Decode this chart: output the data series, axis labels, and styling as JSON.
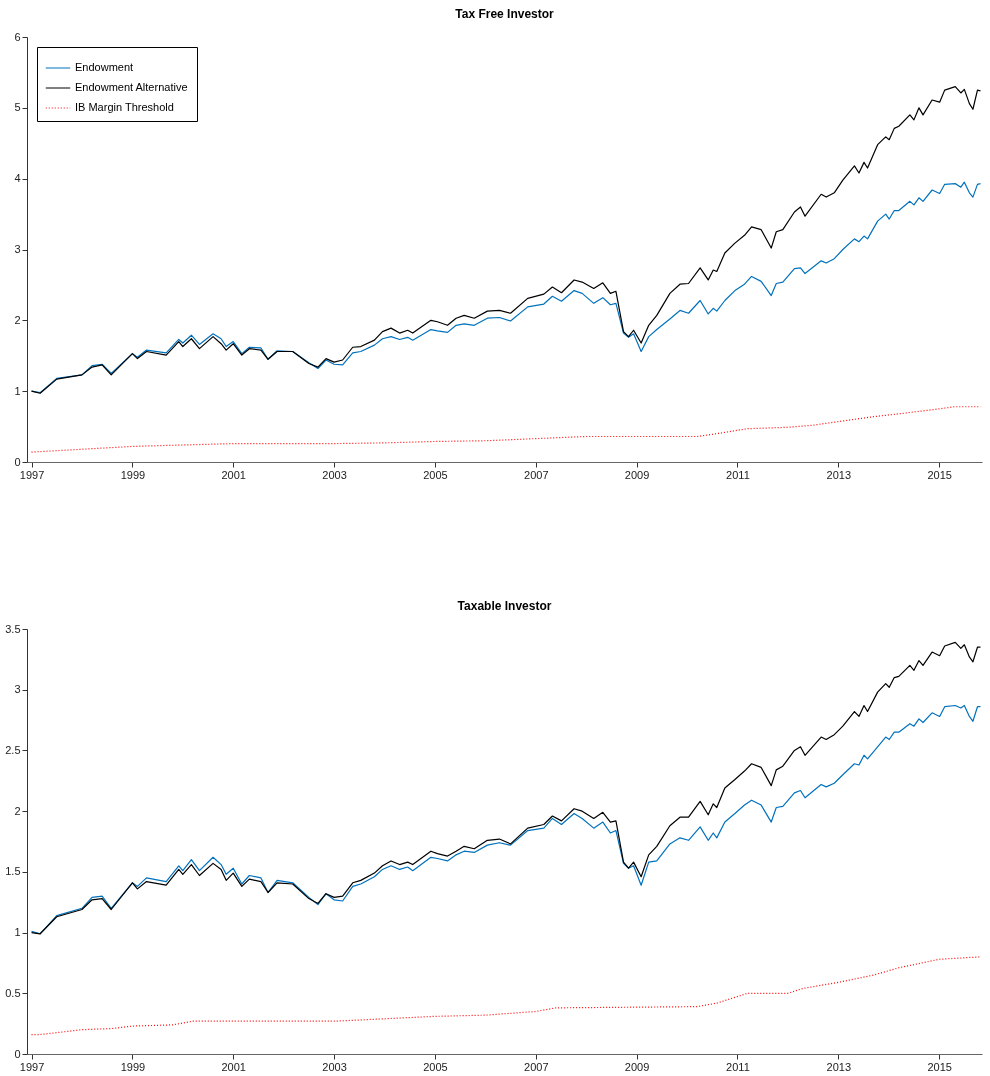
{
  "chart_data": [
    {
      "type": "line",
      "title": "Tax Free Investor",
      "legend": "top left",
      "x": [
        1997.0,
        1997.17,
        1997.5,
        1998.0,
        1998.2,
        1998.4,
        1998.58,
        1999.0,
        1999.1,
        1999.28,
        1999.67,
        1999.92,
        2000.0,
        2000.17,
        2000.33,
        2000.6,
        2000.76,
        2000.86,
        2001.0,
        2001.17,
        2001.32,
        2001.55,
        2001.69,
        2001.87,
        2002.18,
        2002.5,
        2002.68,
        2002.84,
        2003.0,
        2003.17,
        2003.37,
        2003.53,
        2003.8,
        2003.96,
        2004.13,
        2004.3,
        2004.46,
        2004.56,
        2004.92,
        2005.05,
        2005.25,
        2005.42,
        2005.58,
        2005.78,
        2006.04,
        2006.28,
        2006.5,
        2006.84,
        2007.16,
        2007.33,
        2007.51,
        2007.76,
        2007.92,
        2008.15,
        2008.33,
        2008.48,
        2008.59,
        2008.74,
        2008.84,
        2008.94,
        2009.09,
        2009.24,
        2009.4,
        2009.66,
        2009.86,
        2010.03,
        2010.26,
        2010.42,
        2010.52,
        2010.59,
        2010.75,
        2010.95,
        2011.14,
        2011.28,
        2011.47,
        2011.67,
        2011.77,
        2011.9,
        2012.13,
        2012.25,
        2012.34,
        2012.66,
        2012.76,
        2012.92,
        2013.09,
        2013.32,
        2013.41,
        2013.51,
        2013.58,
        2013.78,
        2013.94,
        2014.01,
        2014.11,
        2014.2,
        2014.42,
        2014.5,
        2014.6,
        2014.68,
        2014.86,
        2015.01,
        2015.11,
        2015.32,
        2015.43,
        2015.5,
        2015.6,
        2015.67,
        2015.76,
        2015.82
      ],
      "series": [
        {
          "name": "Endowment",
          "color": "#0072bd",
          "values": [
            1.0,
            0.98,
            1.18,
            1.23,
            1.36,
            1.38,
            1.25,
            1.53,
            1.48,
            1.58,
            1.54,
            1.73,
            1.68,
            1.79,
            1.66,
            1.81,
            1.74,
            1.63,
            1.7,
            1.53,
            1.62,
            1.61,
            1.45,
            1.57,
            1.56,
            1.4,
            1.32,
            1.44,
            1.38,
            1.37,
            1.54,
            1.56,
            1.65,
            1.74,
            1.77,
            1.73,
            1.76,
            1.72,
            1.87,
            1.85,
            1.83,
            1.93,
            1.95,
            1.93,
            2.03,
            2.04,
            1.99,
            2.19,
            2.23,
            2.34,
            2.27,
            2.42,
            2.38,
            2.24,
            2.32,
            2.22,
            2.24,
            1.82,
            1.76,
            1.81,
            1.56,
            1.77,
            1.87,
            2.02,
            2.14,
            2.1,
            2.28,
            2.09,
            2.17,
            2.13,
            2.28,
            2.42,
            2.51,
            2.62,
            2.55,
            2.35,
            2.52,
            2.54,
            2.73,
            2.74,
            2.66,
            2.84,
            2.81,
            2.87,
            3.0,
            3.15,
            3.11,
            3.19,
            3.15,
            3.4,
            3.5,
            3.43,
            3.55,
            3.55,
            3.68,
            3.63,
            3.73,
            3.68,
            3.84,
            3.79,
            3.92,
            3.93,
            3.88,
            3.95,
            3.8,
            3.74,
            3.92,
            3.93
          ]
        },
        {
          "name": "Endowment Alternative",
          "color": "#000000",
          "values": [
            1.0,
            0.97,
            1.17,
            1.23,
            1.34,
            1.37,
            1.23,
            1.53,
            1.46,
            1.56,
            1.51,
            1.7,
            1.63,
            1.74,
            1.6,
            1.77,
            1.67,
            1.58,
            1.67,
            1.51,
            1.6,
            1.58,
            1.45,
            1.56,
            1.56,
            1.39,
            1.34,
            1.46,
            1.41,
            1.44,
            1.62,
            1.63,
            1.72,
            1.84,
            1.89,
            1.82,
            1.86,
            1.82,
            2.0,
            1.98,
            1.93,
            2.03,
            2.07,
            2.03,
            2.13,
            2.14,
            2.1,
            2.31,
            2.37,
            2.47,
            2.39,
            2.57,
            2.54,
            2.45,
            2.53,
            2.38,
            2.41,
            1.84,
            1.77,
            1.86,
            1.68,
            1.93,
            2.07,
            2.38,
            2.51,
            2.52,
            2.74,
            2.57,
            2.71,
            2.69,
            2.95,
            3.09,
            3.2,
            3.32,
            3.28,
            3.02,
            3.25,
            3.28,
            3.53,
            3.6,
            3.47,
            3.78,
            3.74,
            3.8,
            3.98,
            4.18,
            4.08,
            4.23,
            4.15,
            4.48,
            4.59,
            4.55,
            4.71,
            4.74,
            4.9,
            4.83,
            5.0,
            4.9,
            5.11,
            5.08,
            5.25,
            5.3,
            5.21,
            5.26,
            5.06,
            4.98,
            5.25,
            5.24
          ]
        },
        {
          "name": "IB Margin Threshold",
          "color": "#ff0000",
          "line_style": "dotted",
          "x": [
            1997,
            1998,
            1999,
            2000,
            2001,
            2003,
            2004,
            2005,
            2006,
            2007,
            2008,
            2010.2,
            2010.5,
            2011.2,
            2012,
            2012.5,
            2013,
            2013.7,
            2014.2,
            2015,
            2015.3,
            2015.82
          ],
          "values": [
            0.14,
            0.18,
            0.22,
            0.24,
            0.26,
            0.26,
            0.27,
            0.29,
            0.3,
            0.33,
            0.36,
            0.36,
            0.39,
            0.47,
            0.49,
            0.52,
            0.57,
            0.64,
            0.68,
            0.75,
            0.78,
            0.78
          ]
        }
      ],
      "xlim": [
        1996.91,
        2015.85
      ],
      "xticks": [
        1997,
        1999,
        2001,
        2003,
        2005,
        2007,
        2009,
        2011,
        2013,
        2015
      ],
      "ylim": [
        0,
        6
      ],
      "yticks": [
        0,
        1,
        2,
        3,
        4,
        5,
        6
      ]
    },
    {
      "type": "line",
      "title": "Taxable Investor",
      "legend": "top left",
      "x": [
        1997.0,
        1997.17,
        1997.5,
        1998.0,
        1998.2,
        1998.4,
        1998.58,
        1999.0,
        1999.1,
        1999.28,
        1999.67,
        1999.92,
        2000.0,
        2000.17,
        2000.33,
        2000.6,
        2000.76,
        2000.86,
        2001.0,
        2001.17,
        2001.32,
        2001.55,
        2001.69,
        2001.87,
        2002.18,
        2002.5,
        2002.68,
        2002.84,
        2003.0,
        2003.17,
        2003.37,
        2003.53,
        2003.8,
        2003.96,
        2004.13,
        2004.3,
        2004.46,
        2004.56,
        2004.92,
        2005.05,
        2005.25,
        2005.42,
        2005.58,
        2005.78,
        2006.04,
        2006.28,
        2006.5,
        2006.84,
        2007.16,
        2007.33,
        2007.51,
        2007.76,
        2007.92,
        2008.15,
        2008.33,
        2008.48,
        2008.59,
        2008.74,
        2008.84,
        2008.94,
        2009.09,
        2009.24,
        2009.4,
        2009.66,
        2009.86,
        2010.03,
        2010.26,
        2010.42,
        2010.52,
        2010.59,
        2010.75,
        2010.95,
        2011.14,
        2011.28,
        2011.47,
        2011.67,
        2011.77,
        2011.9,
        2012.13,
        2012.25,
        2012.34,
        2012.66,
        2012.76,
        2012.92,
        2013.09,
        2013.32,
        2013.41,
        2013.51,
        2013.58,
        2013.78,
        2013.94,
        2014.01,
        2014.11,
        2014.2,
        2014.42,
        2014.5,
        2014.6,
        2014.68,
        2014.86,
        2015.01,
        2015.11,
        2015.32,
        2015.43,
        2015.5,
        2015.6,
        2015.67,
        2015.76,
        2015.82
      ],
      "series": [
        {
          "name": "Endowment",
          "color": "#0072bd",
          "values": [
            1.01,
            0.99,
            1.14,
            1.2,
            1.29,
            1.3,
            1.2,
            1.41,
            1.38,
            1.45,
            1.42,
            1.55,
            1.51,
            1.6,
            1.51,
            1.62,
            1.56,
            1.48,
            1.53,
            1.4,
            1.47,
            1.45,
            1.33,
            1.43,
            1.41,
            1.29,
            1.23,
            1.32,
            1.27,
            1.26,
            1.38,
            1.4,
            1.46,
            1.52,
            1.55,
            1.52,
            1.54,
            1.51,
            1.62,
            1.61,
            1.59,
            1.64,
            1.67,
            1.66,
            1.72,
            1.74,
            1.72,
            1.84,
            1.86,
            1.94,
            1.89,
            1.98,
            1.94,
            1.86,
            1.91,
            1.82,
            1.84,
            1.57,
            1.53,
            1.55,
            1.39,
            1.58,
            1.59,
            1.73,
            1.78,
            1.76,
            1.87,
            1.76,
            1.82,
            1.78,
            1.91,
            1.98,
            2.05,
            2.09,
            2.05,
            1.91,
            2.03,
            2.04,
            2.15,
            2.17,
            2.11,
            2.22,
            2.2,
            2.23,
            2.3,
            2.39,
            2.38,
            2.46,
            2.43,
            2.53,
            2.61,
            2.59,
            2.65,
            2.65,
            2.72,
            2.7,
            2.76,
            2.73,
            2.81,
            2.78,
            2.86,
            2.87,
            2.85,
            2.87,
            2.78,
            2.74,
            2.86,
            2.86
          ]
        },
        {
          "name": "Endowment Alternative",
          "color": "#000000",
          "values": [
            1.0,
            0.99,
            1.13,
            1.19,
            1.27,
            1.28,
            1.19,
            1.41,
            1.36,
            1.42,
            1.39,
            1.52,
            1.48,
            1.56,
            1.47,
            1.57,
            1.52,
            1.43,
            1.49,
            1.38,
            1.44,
            1.42,
            1.33,
            1.41,
            1.4,
            1.28,
            1.24,
            1.32,
            1.29,
            1.3,
            1.41,
            1.43,
            1.49,
            1.55,
            1.59,
            1.56,
            1.58,
            1.56,
            1.67,
            1.65,
            1.63,
            1.67,
            1.71,
            1.69,
            1.76,
            1.77,
            1.73,
            1.86,
            1.89,
            1.96,
            1.92,
            2.02,
            2.0,
            1.94,
            1.99,
            1.91,
            1.92,
            1.58,
            1.53,
            1.58,
            1.46,
            1.64,
            1.71,
            1.88,
            1.95,
            1.95,
            2.08,
            1.97,
            2.06,
            2.03,
            2.19,
            2.26,
            2.33,
            2.39,
            2.36,
            2.21,
            2.34,
            2.37,
            2.5,
            2.53,
            2.46,
            2.61,
            2.59,
            2.63,
            2.7,
            2.82,
            2.78,
            2.87,
            2.82,
            2.98,
            3.05,
            3.02,
            3.1,
            3.11,
            3.2,
            3.16,
            3.24,
            3.2,
            3.31,
            3.28,
            3.36,
            3.39,
            3.34,
            3.37,
            3.27,
            3.23,
            3.35,
            3.35
          ]
        },
        {
          "name": "IB Margin Threshold",
          "color": "#ff0000",
          "line_style": "dotted",
          "x": [
            1997,
            1997.17,
            1998,
            1998.6,
            1999,
            1999.8,
            2000.2,
            2003,
            2004,
            2005,
            2006,
            2007,
            2007.4,
            2010.2,
            2010.6,
            2011.2,
            2012,
            2012.3,
            2013,
            2013.7,
            2014.2,
            2015,
            2015.82
          ],
          "values": [
            0.16,
            0.16,
            0.2,
            0.21,
            0.23,
            0.24,
            0.27,
            0.27,
            0.29,
            0.31,
            0.32,
            0.35,
            0.38,
            0.39,
            0.42,
            0.5,
            0.5,
            0.54,
            0.59,
            0.65,
            0.71,
            0.78,
            0.8
          ]
        }
      ],
      "xlim": [
        1996.91,
        2015.85
      ],
      "xticks": [
        1997,
        1999,
        2001,
        2003,
        2005,
        2007,
        2009,
        2011,
        2013,
        2015
      ],
      "ylim": [
        0,
        3.5
      ],
      "yticks": [
        0,
        0.5,
        1,
        1.5,
        2,
        2.5,
        3,
        3.5
      ]
    }
  ]
}
